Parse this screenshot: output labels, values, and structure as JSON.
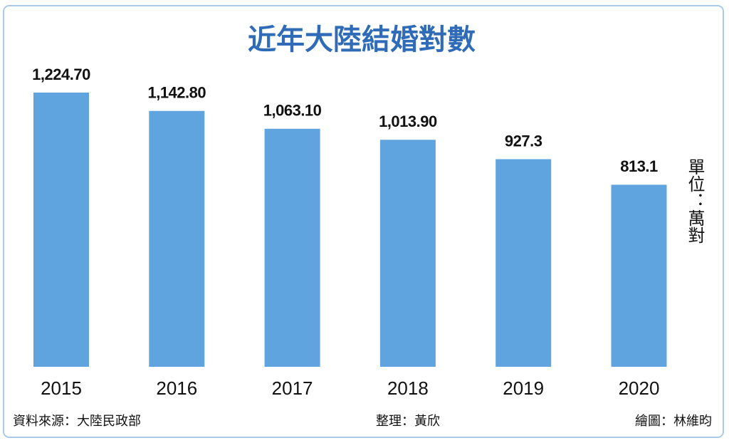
{
  "chart_data": {
    "type": "bar",
    "title": "近年大陸結婚對數",
    "categories": [
      "2015",
      "2016",
      "2017",
      "2018",
      "2019",
      "2020"
    ],
    "values": [
      1224.7,
      1142.8,
      1063.1,
      1013.9,
      927.3,
      813.1
    ],
    "value_labels": [
      "1,224.70",
      "1,142.80",
      "1,063.10",
      "1,013.90",
      "927.3",
      "813.1"
    ],
    "color": "#5fa4df",
    "unit": "單位：萬對",
    "source": "資料來源：大陸民政部",
    "editor": "整理：黃欣",
    "illustrator": "繪圖：林維昀"
  }
}
